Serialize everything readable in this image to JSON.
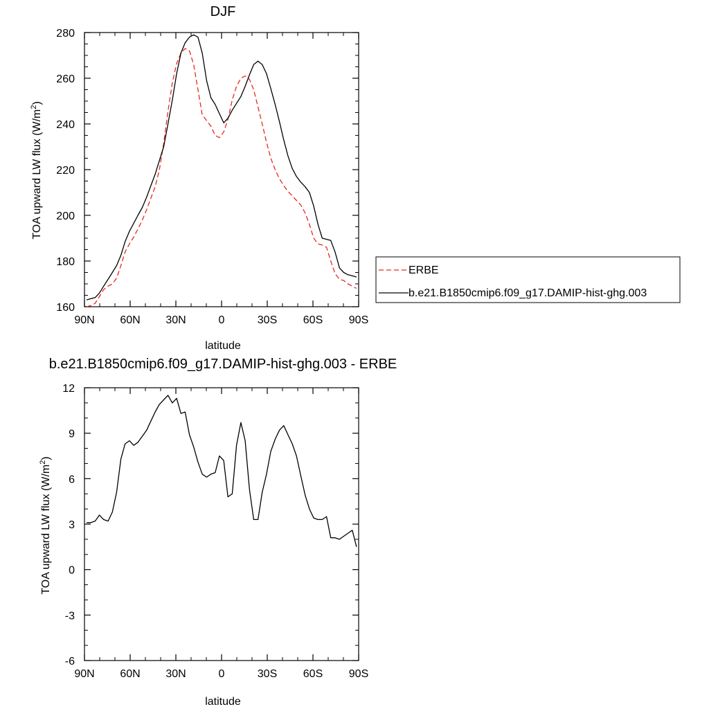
{
  "colors": {
    "erbe": "#e8261f",
    "model": "#000000",
    "axis": "#000000"
  },
  "chart_data": [
    {
      "type": "line",
      "title": "DJF",
      "xlabel": "latitude",
      "ylabel": "TOA upward LW flux (W/m",
      "ylabel_sup": "2",
      "ylabel_close": ")",
      "xlim": [
        90,
        -90
      ],
      "ylim": [
        160,
        280
      ],
      "xticks": [
        90,
        60,
        30,
        0,
        -30,
        -60,
        -90
      ],
      "xtick_labels": [
        "90N",
        "60N",
        "30N",
        "0",
        "30S",
        "60S",
        "90S"
      ],
      "yticks": [
        160,
        180,
        200,
        220,
        240,
        260,
        280
      ],
      "ytick_labels": [
        "160",
        "180",
        "200",
        "220",
        "240",
        "260",
        "280"
      ],
      "legend": {
        "placement": "right",
        "entries": [
          "ERBE",
          "b.e21.B1850cmip6.f09_g17.DAMIP-hist-ghg.003"
        ]
      },
      "series": [
        {
          "name": "ERBE",
          "style": "dashed",
          "x": [
            88.6,
            85.8,
            83.0,
            80.2,
            77.4,
            74.5,
            71.7,
            68.9,
            66.1,
            63.3,
            60.5,
            57.7,
            54.9,
            52.0,
            49.2,
            46.4,
            43.6,
            40.8,
            38.0,
            35.2,
            32.3,
            29.5,
            26.7,
            23.9,
            21.1,
            18.3,
            15.5,
            12.7,
            9.8,
            7.0,
            4.2,
            1.4,
            -1.4,
            -4.2,
            -7.0,
            -9.8,
            -12.7,
            -15.5,
            -18.3,
            -21.1,
            -23.9,
            -26.7,
            -29.5,
            -32.3,
            -35.2,
            -38.0,
            -40.8,
            -43.6,
            -46.4,
            -49.2,
            -52.0,
            -54.9,
            -57.7,
            -60.5,
            -63.3,
            -66.1,
            -68.9,
            -71.7,
            -74.5,
            -77.4,
            -80.2,
            -83.0,
            -85.8,
            -88.6
          ],
          "values": [
            160.0,
            160.5,
            161.5,
            164.5,
            167.5,
            169.0,
            170.0,
            172.5,
            178.0,
            184.0,
            187.5,
            190.5,
            194.0,
            198.0,
            202.5,
            207.5,
            212.5,
            220.0,
            231.5,
            245.5,
            258.0,
            266.5,
            271.0,
            273.0,
            272.0,
            266.0,
            255.0,
            244.0,
            241.5,
            239.0,
            235.0,
            234.0,
            236.5,
            242.0,
            250.5,
            256.5,
            260.0,
            261.0,
            259.5,
            255.0,
            247.5,
            240.0,
            232.0,
            225.0,
            220.0,
            216.0,
            213.0,
            210.5,
            208.5,
            206.5,
            204.5,
            201.0,
            196.0,
            190.0,
            187.5,
            187.0,
            186.0,
            180.0,
            174.5,
            172.0,
            171.5,
            170.0,
            169.0,
            168.0
          ]
        },
        {
          "name": "b.e21.B1850cmip6.f09_g17.DAMIP-hist-ghg.003",
          "style": "solid",
          "x": [
            88.6,
            85.8,
            83.0,
            80.2,
            77.4,
            74.5,
            71.7,
            68.9,
            66.1,
            63.3,
            60.5,
            57.7,
            54.9,
            52.0,
            49.2,
            46.4,
            43.6,
            40.8,
            38.0,
            35.2,
            32.3,
            29.5,
            26.7,
            23.9,
            21.1,
            18.3,
            15.5,
            12.7,
            9.8,
            7.0,
            4.2,
            1.4,
            -1.4,
            -4.2,
            -7.0,
            -9.8,
            -12.7,
            -15.5,
            -18.3,
            -21.1,
            -23.9,
            -26.7,
            -29.5,
            -32.3,
            -35.2,
            -38.0,
            -40.8,
            -43.6,
            -46.4,
            -49.2,
            -52.0,
            -54.9,
            -57.7,
            -60.5,
            -63.3,
            -66.1,
            -68.9,
            -71.7,
            -74.5,
            -77.4,
            -80.2,
            -83.0,
            -85.8,
            -88.6
          ],
          "values": [
            163.0,
            163.5,
            164.0,
            166.0,
            169.0,
            172.0,
            175.0,
            178.0,
            182.5,
            188.5,
            193.0,
            196.5,
            200.0,
            203.5,
            208.0,
            213.0,
            218.0,
            224.0,
            230.0,
            240.0,
            250.5,
            262.0,
            271.0,
            275.5,
            278.0,
            279.0,
            278.0,
            271.0,
            259.0,
            251.5,
            248.5,
            244.5,
            240.5,
            242.5,
            246.0,
            249.0,
            252.0,
            256.5,
            261.5,
            266.0,
            267.5,
            266.0,
            262.0,
            255.5,
            248.5,
            241.0,
            233.0,
            226.0,
            220.5,
            217.0,
            214.5,
            212.5,
            210.0,
            204.0,
            196.0,
            190.0,
            189.5,
            189.0,
            184.0,
            177.0,
            175.0,
            174.0,
            173.5,
            173.0
          ]
        }
      ]
    },
    {
      "type": "line",
      "title": "b.e21.B1850cmip6.f09_g17.DAMIP-hist-ghg.003 - ERBE",
      "xlabel": "latitude",
      "ylabel": "TOA upward LW flux (W/m",
      "ylabel_sup": "2",
      "ylabel_close": ")",
      "xlim": [
        90,
        -90
      ],
      "ylim": [
        -6,
        12
      ],
      "xticks": [
        90,
        60,
        30,
        0,
        -30,
        -60,
        -90
      ],
      "xtick_labels": [
        "90N",
        "60N",
        "30N",
        "0",
        "30S",
        "60S",
        "90S"
      ],
      "yticks": [
        -6,
        -3,
        0,
        3,
        6,
        9,
        12
      ],
      "ytick_labels": [
        "-6",
        "-3",
        "0",
        "3",
        "6",
        "9",
        "12"
      ],
      "series": [
        {
          "style": "solid",
          "x": [
            88.6,
            85.8,
            83.0,
            80.2,
            77.4,
            74.5,
            71.7,
            68.9,
            66.1,
            63.3,
            60.5,
            57.7,
            54.9,
            52.0,
            49.2,
            46.4,
            43.6,
            40.8,
            38.0,
            35.2,
            32.3,
            29.5,
            26.7,
            23.9,
            21.1,
            18.3,
            15.5,
            12.7,
            9.8,
            7.0,
            4.2,
            1.4,
            -1.4,
            -4.2,
            -7.0,
            -9.8,
            -12.7,
            -15.5,
            -18.3,
            -21.1,
            -23.9,
            -26.7,
            -29.5,
            -32.3,
            -35.2,
            -38.0,
            -40.8,
            -43.6,
            -46.4,
            -49.2,
            -52.0,
            -54.9,
            -57.7,
            -60.5,
            -63.3,
            -66.1,
            -68.9,
            -71.7,
            -74.5,
            -77.4,
            -80.2,
            -83.0,
            -85.8,
            -88.6
          ],
          "values": [
            3.1,
            3.1,
            3.2,
            3.6,
            3.3,
            3.2,
            3.8,
            5.1,
            7.3,
            8.3,
            8.5,
            8.2,
            8.4,
            8.8,
            9.2,
            9.8,
            10.4,
            10.9,
            11.2,
            11.5,
            11.0,
            11.3,
            10.3,
            10.4,
            8.9,
            8.1,
            7.1,
            6.3,
            6.1,
            6.3,
            6.4,
            7.5,
            7.2,
            4.8,
            5.0,
            8.2,
            9.7,
            8.5,
            5.3,
            3.3,
            3.3,
            5.1,
            6.3,
            7.8,
            8.6,
            9.2,
            9.5,
            8.9,
            8.3,
            7.5,
            6.2,
            4.9,
            4.0,
            3.4,
            3.3,
            3.3,
            3.5,
            2.1,
            2.1,
            2.0,
            2.2,
            2.4,
            2.6,
            1.5
          ]
        }
      ]
    }
  ]
}
